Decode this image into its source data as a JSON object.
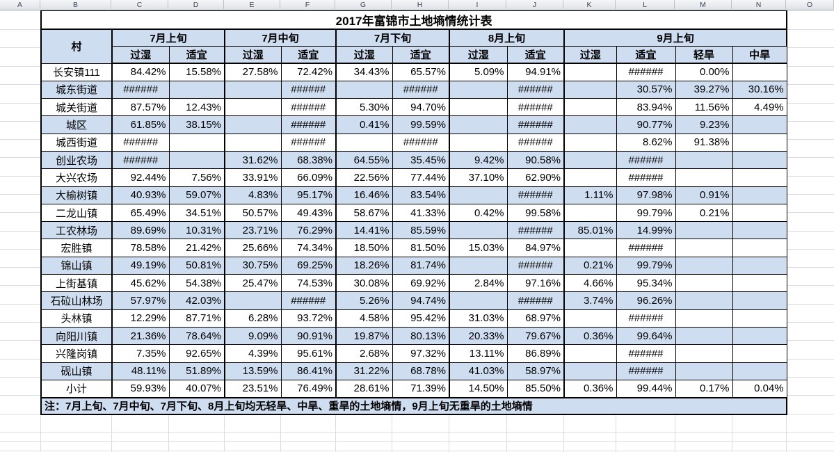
{
  "sheet": {
    "column_letters": [
      "A",
      "B",
      "C",
      "D",
      "E",
      "F",
      "G",
      "H",
      "I",
      "J",
      "K",
      "L",
      "M",
      "N",
      "O"
    ]
  },
  "title": "2017年富锦市土地墒情统计表",
  "table": {
    "village_header": "村",
    "groups": [
      {
        "label": "7月上旬",
        "cols": [
          "过湿",
          "适宜"
        ]
      },
      {
        "label": "7月中旬",
        "cols": [
          "过湿",
          "适宜"
        ]
      },
      {
        "label": "7月下旬",
        "cols": [
          "过湿",
          "适宜"
        ]
      },
      {
        "label": "8月上旬",
        "cols": [
          "过湿",
          "适宜"
        ]
      },
      {
        "label": "9月上旬",
        "cols": [
          "过湿",
          "适宜",
          "轻旱",
          "中旱"
        ]
      }
    ],
    "rows": [
      {
        "name": "长安镇111",
        "values": [
          "84.42%",
          "15.58%",
          "27.58%",
          "72.42%",
          "34.43%",
          "65.57%",
          "5.09%",
          "94.91%",
          "",
          "######",
          "0.00%",
          ""
        ]
      },
      {
        "name": "城东街道",
        "values": [
          "######",
          "",
          "",
          "######",
          "",
          "######",
          "",
          "######",
          "",
          "30.57%",
          "39.27%",
          "30.16%"
        ]
      },
      {
        "name": "城关街道",
        "values": [
          "87.57%",
          "12.43%",
          "",
          "######",
          "5.30%",
          "94.70%",
          "",
          "######",
          "",
          "83.94%",
          "11.56%",
          "4.49%"
        ]
      },
      {
        "name": "城区",
        "values": [
          "61.85%",
          "38.15%",
          "",
          "######",
          "0.41%",
          "99.59%",
          "",
          "######",
          "",
          "90.77%",
          "9.23%",
          ""
        ]
      },
      {
        "name": "城西街道",
        "values": [
          "######",
          "",
          "",
          "######",
          "",
          "######",
          "",
          "######",
          "",
          "8.62%",
          "91.38%",
          ""
        ]
      },
      {
        "name": "创业农场",
        "values": [
          "######",
          "",
          "31.62%",
          "68.38%",
          "64.55%",
          "35.45%",
          "9.42%",
          "90.58%",
          "",
          "######",
          "",
          ""
        ]
      },
      {
        "name": "大兴农场",
        "values": [
          "92.44%",
          "7.56%",
          "33.91%",
          "66.09%",
          "22.56%",
          "77.44%",
          "37.10%",
          "62.90%",
          "",
          "######",
          "",
          ""
        ]
      },
      {
        "name": "大榆树镇",
        "values": [
          "40.93%",
          "59.07%",
          "4.83%",
          "95.17%",
          "16.46%",
          "83.54%",
          "",
          "######",
          "1.11%",
          "97.98%",
          "0.91%",
          ""
        ]
      },
      {
        "name": "二龙山镇",
        "values": [
          "65.49%",
          "34.51%",
          "50.57%",
          "49.43%",
          "58.67%",
          "41.33%",
          "0.42%",
          "99.58%",
          "",
          "99.79%",
          "0.21%",
          ""
        ]
      },
      {
        "name": "工农林场",
        "values": [
          "89.69%",
          "10.31%",
          "23.71%",
          "76.29%",
          "14.41%",
          "85.59%",
          "",
          "######",
          "85.01%",
          "14.99%",
          "",
          ""
        ]
      },
      {
        "name": "宏胜镇",
        "values": [
          "78.58%",
          "21.42%",
          "25.66%",
          "74.34%",
          "18.50%",
          "81.50%",
          "15.03%",
          "84.97%",
          "",
          "######",
          "",
          ""
        ]
      },
      {
        "name": "锦山镇",
        "values": [
          "49.19%",
          "50.81%",
          "30.75%",
          "69.25%",
          "18.26%",
          "81.74%",
          "",
          "######",
          "0.21%",
          "99.79%",
          "",
          ""
        ]
      },
      {
        "name": "上街基镇",
        "values": [
          "45.62%",
          "54.38%",
          "25.47%",
          "74.53%",
          "30.08%",
          "69.92%",
          "2.84%",
          "97.16%",
          "4.66%",
          "95.34%",
          "",
          ""
        ]
      },
      {
        "name": "石砬山林场",
        "values": [
          "57.97%",
          "42.03%",
          "",
          "######",
          "5.26%",
          "94.74%",
          "",
          "######",
          "3.74%",
          "96.26%",
          "",
          ""
        ]
      },
      {
        "name": "头林镇",
        "values": [
          "12.29%",
          "87.71%",
          "6.28%",
          "93.72%",
          "4.58%",
          "95.42%",
          "31.03%",
          "68.97%",
          "",
          "######",
          "",
          ""
        ]
      },
      {
        "name": "向阳川镇",
        "values": [
          "21.36%",
          "78.64%",
          "9.09%",
          "90.91%",
          "19.87%",
          "80.13%",
          "20.33%",
          "79.67%",
          "0.36%",
          "99.64%",
          "",
          ""
        ]
      },
      {
        "name": "兴隆岗镇",
        "values": [
          "7.35%",
          "92.65%",
          "4.39%",
          "95.61%",
          "2.68%",
          "97.32%",
          "13.11%",
          "86.89%",
          "",
          "######",
          "",
          ""
        ]
      },
      {
        "name": "砚山镇",
        "values": [
          "48.11%",
          "51.89%",
          "13.59%",
          "86.41%",
          "31.22%",
          "68.78%",
          "41.03%",
          "58.97%",
          "",
          "######",
          "",
          ""
        ]
      },
      {
        "name": "小计",
        "values": [
          "59.93%",
          "40.07%",
          "23.51%",
          "76.49%",
          "28.61%",
          "71.39%",
          "14.50%",
          "85.50%",
          "0.36%",
          "99.44%",
          "0.17%",
          "0.04%"
        ]
      }
    ],
    "note": "注：7月上旬、7月中旬、7月下旬、8月上旬均无轻旱、中旱、重旱的土地墒情，9月上旬无重旱的土地墒情"
  },
  "colors": {
    "header_fill": "#cfddf1",
    "alt_row_fill": "#cfddf1",
    "table_border": "#000000",
    "gridline": "#d9dde3"
  }
}
